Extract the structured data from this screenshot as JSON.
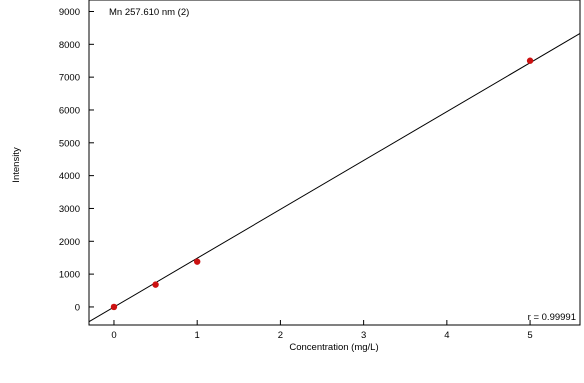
{
  "chart_data": {
    "type": "scatter",
    "title": "Mn 257.610 nm (2)",
    "xlabel": "Concentration (mg/L)",
    "ylabel": "Intensity",
    "annotation": "r = 0.99991",
    "xlim": [
      -0.3,
      5.6
    ],
    "ylim": [
      -550,
      9350
    ],
    "xticks": [
      0,
      1,
      2,
      3,
      4,
      5
    ],
    "yticks": [
      0,
      1000,
      2000,
      3000,
      4000,
      5000,
      6000,
      7000,
      8000,
      9000
    ],
    "grid": false,
    "points": [
      {
        "x": 0,
        "y": 0
      },
      {
        "x": 0.5,
        "y": 680
      },
      {
        "x": 1,
        "y": 1380
      },
      {
        "x": 5,
        "y": 7500
      }
    ],
    "fit_line": {
      "x": [
        -0.3,
        5.6
      ],
      "y": [
        -450,
        8330
      ]
    },
    "point_color": "#cc1111",
    "line_color": "#000000"
  }
}
